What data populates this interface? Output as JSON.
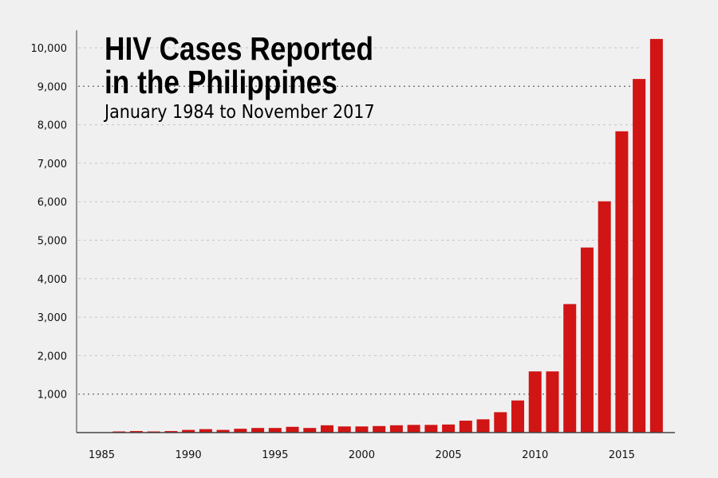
{
  "chart_data": {
    "type": "bar",
    "title": "HIV Cases Reported in the Philippines",
    "title_lines": [
      "HIV Cases Reported",
      "in the Philippines"
    ],
    "subtitle": "January 1984 to November 2017",
    "xlabel": "",
    "ylabel": "",
    "categories": [
      1984,
      1985,
      1986,
      1987,
      1988,
      1989,
      1990,
      1991,
      1992,
      1993,
      1994,
      1995,
      1996,
      1997,
      1998,
      1999,
      2000,
      2001,
      2002,
      2003,
      2004,
      2005,
      2006,
      2007,
      2008,
      2009,
      2010,
      2011,
      2012,
      2013,
      2014,
      2015,
      2016,
      2017
    ],
    "values": [
      2,
      10,
      30,
      40,
      30,
      40,
      70,
      90,
      70,
      100,
      120,
      120,
      150,
      120,
      190,
      160,
      160,
      170,
      190,
      200,
      200,
      210,
      310,
      345,
      530,
      835,
      1590,
      1590,
      3340,
      4810,
      6010,
      7830,
      9190,
      10230
    ],
    "x_tick_labels": [
      "1985",
      "1990",
      "1995",
      "2000",
      "2005",
      "2010",
      "2015"
    ],
    "y_tick_labels": [
      "1,000",
      "2,000",
      "3,000",
      "4,000",
      "5,000",
      "6,000",
      "7,000",
      "8,000",
      "9,000",
      "10,000"
    ],
    "y_ticks": [
      1000,
      2000,
      3000,
      4000,
      5000,
      6000,
      7000,
      8000,
      9000,
      10000
    ],
    "ylim": [
      0,
      10500
    ],
    "grid": "horizontal dotted",
    "legend": "none",
    "bar_color": "#d11414",
    "emphasized_gridlines": [
      1000,
      9000
    ]
  }
}
